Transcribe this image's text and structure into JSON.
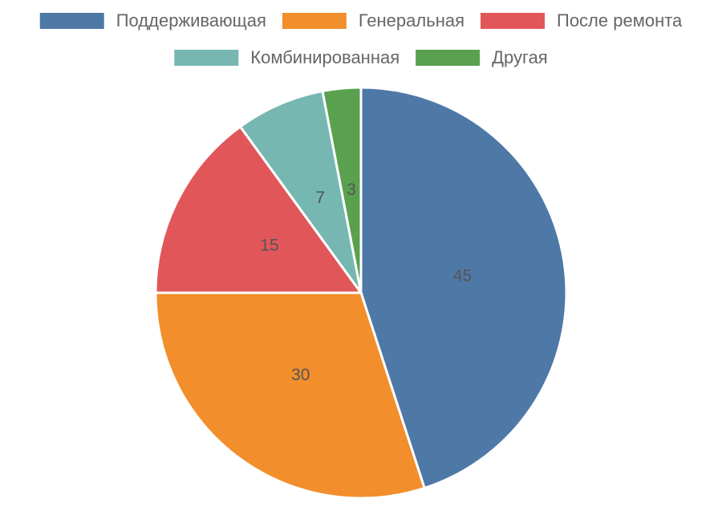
{
  "chart_data": {
    "type": "pie",
    "categories": [
      "Поддерживающая",
      "Генеральная",
      "После ремонта",
      "Комбинированная",
      "Другая"
    ],
    "values": [
      45,
      30,
      15,
      7,
      3
    ],
    "colors": [
      "#4e79a7",
      "#f28e2b",
      "#e15759",
      "#76b7b2",
      "#59a14f"
    ],
    "legend": "top"
  }
}
